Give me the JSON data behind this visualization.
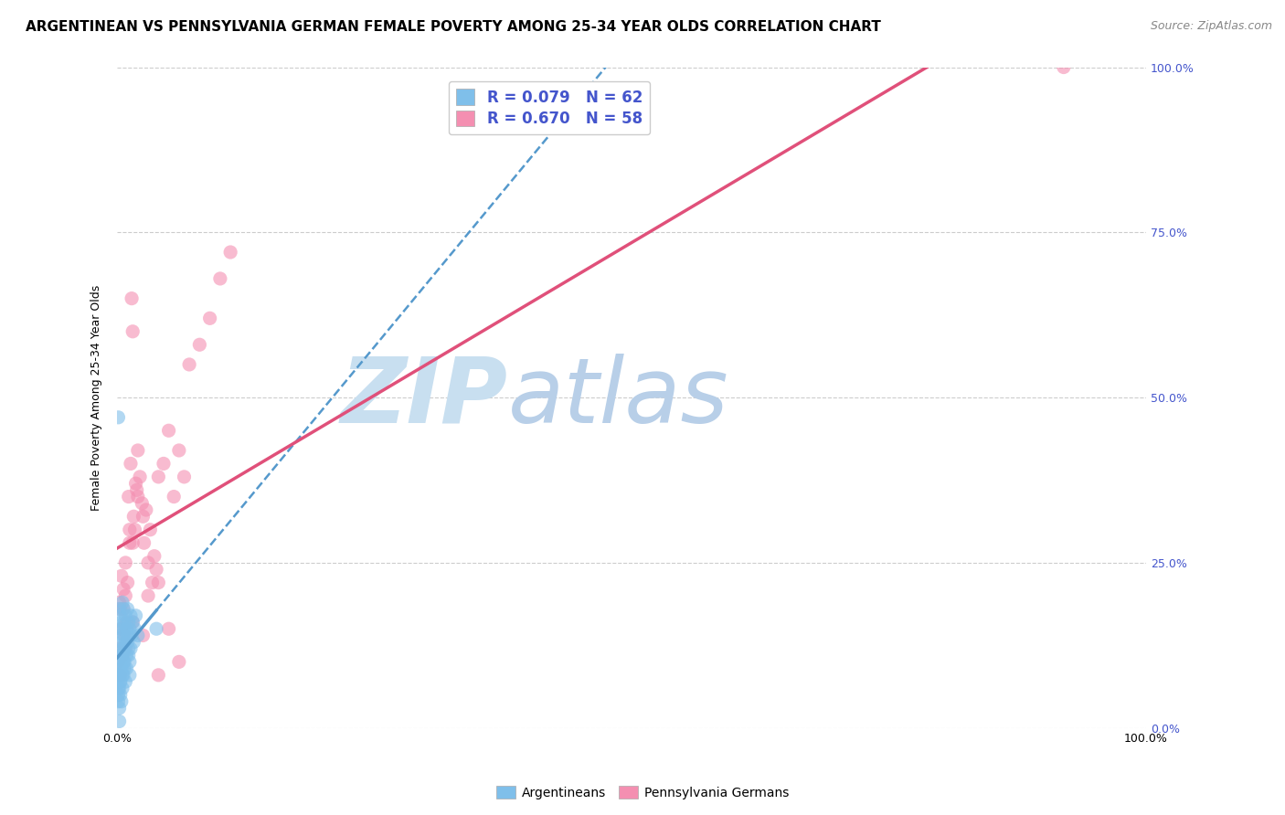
{
  "title": "ARGENTINEAN VS PENNSYLVANIA GERMAN FEMALE POVERTY AMONG 25-34 YEAR OLDS CORRELATION CHART",
  "source": "Source: ZipAtlas.com",
  "ylabel": "Female Poverty Among 25-34 Year Olds",
  "r_argentinean": 0.079,
  "n_argentinean": 62,
  "r_pennger": 0.67,
  "n_pennger": 58,
  "color_argentinean": "#7fbfea",
  "color_pennger": "#f48fb1",
  "trendline_argentinean_color": "#5599cc",
  "trendline_pennger_color": "#e0507a",
  "watermark_zip": "ZIP",
  "watermark_atlas": "atlas",
  "watermark_zip_color": "#c8dff0",
  "watermark_atlas_color": "#b8cfe8",
  "background_color": "#ffffff",
  "grid_color": "#cccccc",
  "ytick_color": "#4455cc",
  "ytick_labels": [
    "0.0%",
    "25.0%",
    "50.0%",
    "75.0%",
    "100.0%"
  ],
  "ytick_values": [
    0.0,
    0.25,
    0.5,
    0.75,
    1.0
  ],
  "xtick_labels": [
    "0.0%",
    "",
    "",
    "",
    "100.0%"
  ],
  "xtick_values": [
    0.0,
    0.25,
    0.5,
    0.75,
    1.0
  ],
  "argentinean_x": [
    0.001,
    0.001,
    0.001,
    0.002,
    0.002,
    0.002,
    0.002,
    0.003,
    0.003,
    0.003,
    0.003,
    0.004,
    0.004,
    0.004,
    0.005,
    0.005,
    0.005,
    0.005,
    0.006,
    0.006,
    0.006,
    0.007,
    0.007,
    0.007,
    0.008,
    0.008,
    0.009,
    0.009,
    0.01,
    0.01,
    0.011,
    0.011,
    0.012,
    0.012,
    0.013,
    0.014,
    0.015,
    0.016,
    0.017,
    0.018,
    0.001,
    0.001,
    0.002,
    0.002,
    0.003,
    0.003,
    0.004,
    0.004,
    0.005,
    0.005,
    0.006,
    0.007,
    0.008,
    0.009,
    0.01,
    0.011,
    0.012,
    0.013,
    0.02,
    0.038,
    0.001,
    0.002
  ],
  "argentinean_y": [
    0.12,
    0.08,
    0.05,
    0.15,
    0.18,
    0.1,
    0.06,
    0.14,
    0.09,
    0.17,
    0.07,
    0.16,
    0.11,
    0.13,
    0.19,
    0.12,
    0.08,
    0.15,
    0.18,
    0.1,
    0.14,
    0.16,
    0.12,
    0.09,
    0.17,
    0.13,
    0.15,
    0.11,
    0.18,
    0.14,
    0.16,
    0.12,
    0.15,
    0.1,
    0.17,
    0.14,
    0.16,
    0.13,
    0.15,
    0.17,
    0.04,
    0.06,
    0.03,
    0.08,
    0.05,
    0.07,
    0.04,
    0.09,
    0.06,
    0.11,
    0.08,
    0.1,
    0.07,
    0.09,
    0.13,
    0.11,
    0.08,
    0.12,
    0.14,
    0.15,
    0.47,
    0.01
  ],
  "pennger_x": [
    0.001,
    0.002,
    0.003,
    0.004,
    0.005,
    0.006,
    0.007,
    0.008,
    0.009,
    0.01,
    0.011,
    0.012,
    0.013,
    0.014,
    0.015,
    0.016,
    0.017,
    0.018,
    0.019,
    0.02,
    0.022,
    0.024,
    0.026,
    0.028,
    0.03,
    0.032,
    0.034,
    0.036,
    0.038,
    0.04,
    0.045,
    0.05,
    0.055,
    0.06,
    0.065,
    0.07,
    0.08,
    0.09,
    0.1,
    0.11,
    0.002,
    0.004,
    0.006,
    0.008,
    0.012,
    0.015,
    0.02,
    0.025,
    0.03,
    0.04,
    0.05,
    0.06,
    0.003,
    0.008,
    0.015,
    0.025,
    0.04,
    0.92
  ],
  "pennger_y": [
    0.1,
    0.12,
    0.08,
    0.15,
    0.11,
    0.18,
    0.14,
    0.2,
    0.16,
    0.22,
    0.35,
    0.28,
    0.4,
    0.65,
    0.6,
    0.32,
    0.3,
    0.37,
    0.36,
    0.42,
    0.38,
    0.34,
    0.28,
    0.33,
    0.25,
    0.3,
    0.22,
    0.26,
    0.24,
    0.38,
    0.4,
    0.45,
    0.35,
    0.42,
    0.38,
    0.55,
    0.58,
    0.62,
    0.68,
    0.72,
    0.19,
    0.23,
    0.21,
    0.25,
    0.3,
    0.28,
    0.35,
    0.32,
    0.2,
    0.22,
    0.15,
    0.1,
    0.18,
    0.12,
    0.16,
    0.14,
    0.08,
    1.0
  ],
  "legend_text_color": "#4455cc",
  "title_fontsize": 11,
  "source_fontsize": 9,
  "axis_label_fontsize": 9,
  "tick_fontsize": 9,
  "legend_fontsize": 12
}
